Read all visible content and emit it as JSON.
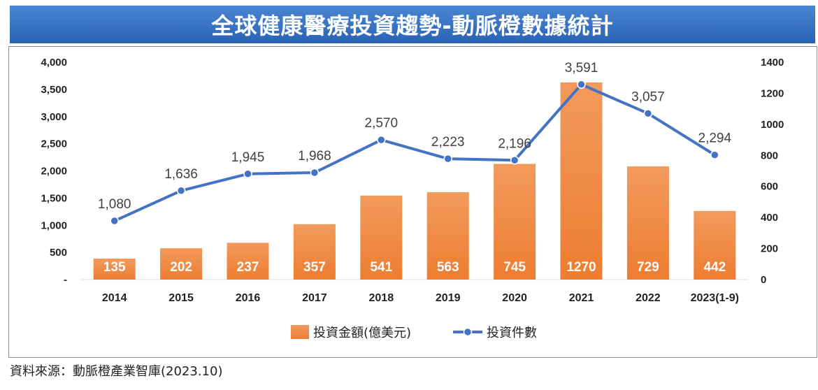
{
  "title": "全球健康醫療投資趨勢-動脈橙數據統計",
  "source": "資料來源：動脈橙產業智庫(2023.10)",
  "colors": {
    "bar": "#ed7d31",
    "line": "#4472c4",
    "banner": "#3a74c4"
  },
  "chart_data": {
    "type": "bar",
    "categories": [
      "2014",
      "2015",
      "2016",
      "2017",
      "2018",
      "2019",
      "2020",
      "2021",
      "2022",
      "2023(1-9)"
    ],
    "series": [
      {
        "name": "投資金額(億美元)",
        "type": "bar",
        "axis": "left",
        "values": [
          135,
          202,
          237,
          357,
          541,
          563,
          745,
          1270,
          729,
          442
        ]
      },
      {
        "name": "投資件數",
        "type": "line",
        "axis": "right",
        "values": [
          1080,
          1636,
          1945,
          1968,
          2570,
          2223,
          2196,
          3591,
          3057,
          2294
        ]
      }
    ],
    "left_axis": {
      "ticks": [
        "-",
        "500",
        "1,000",
        "1,500",
        "2,000",
        "2,500",
        "3,000",
        "3,500",
        "4,000"
      ],
      "ylim": [
        0,
        4000
      ]
    },
    "right_axis": {
      "ticks": [
        "0",
        "200",
        "400",
        "600",
        "800",
        "1000",
        "1200",
        "1400"
      ],
      "ylim": [
        0,
        1400
      ]
    },
    "legend_position": "bottom"
  }
}
